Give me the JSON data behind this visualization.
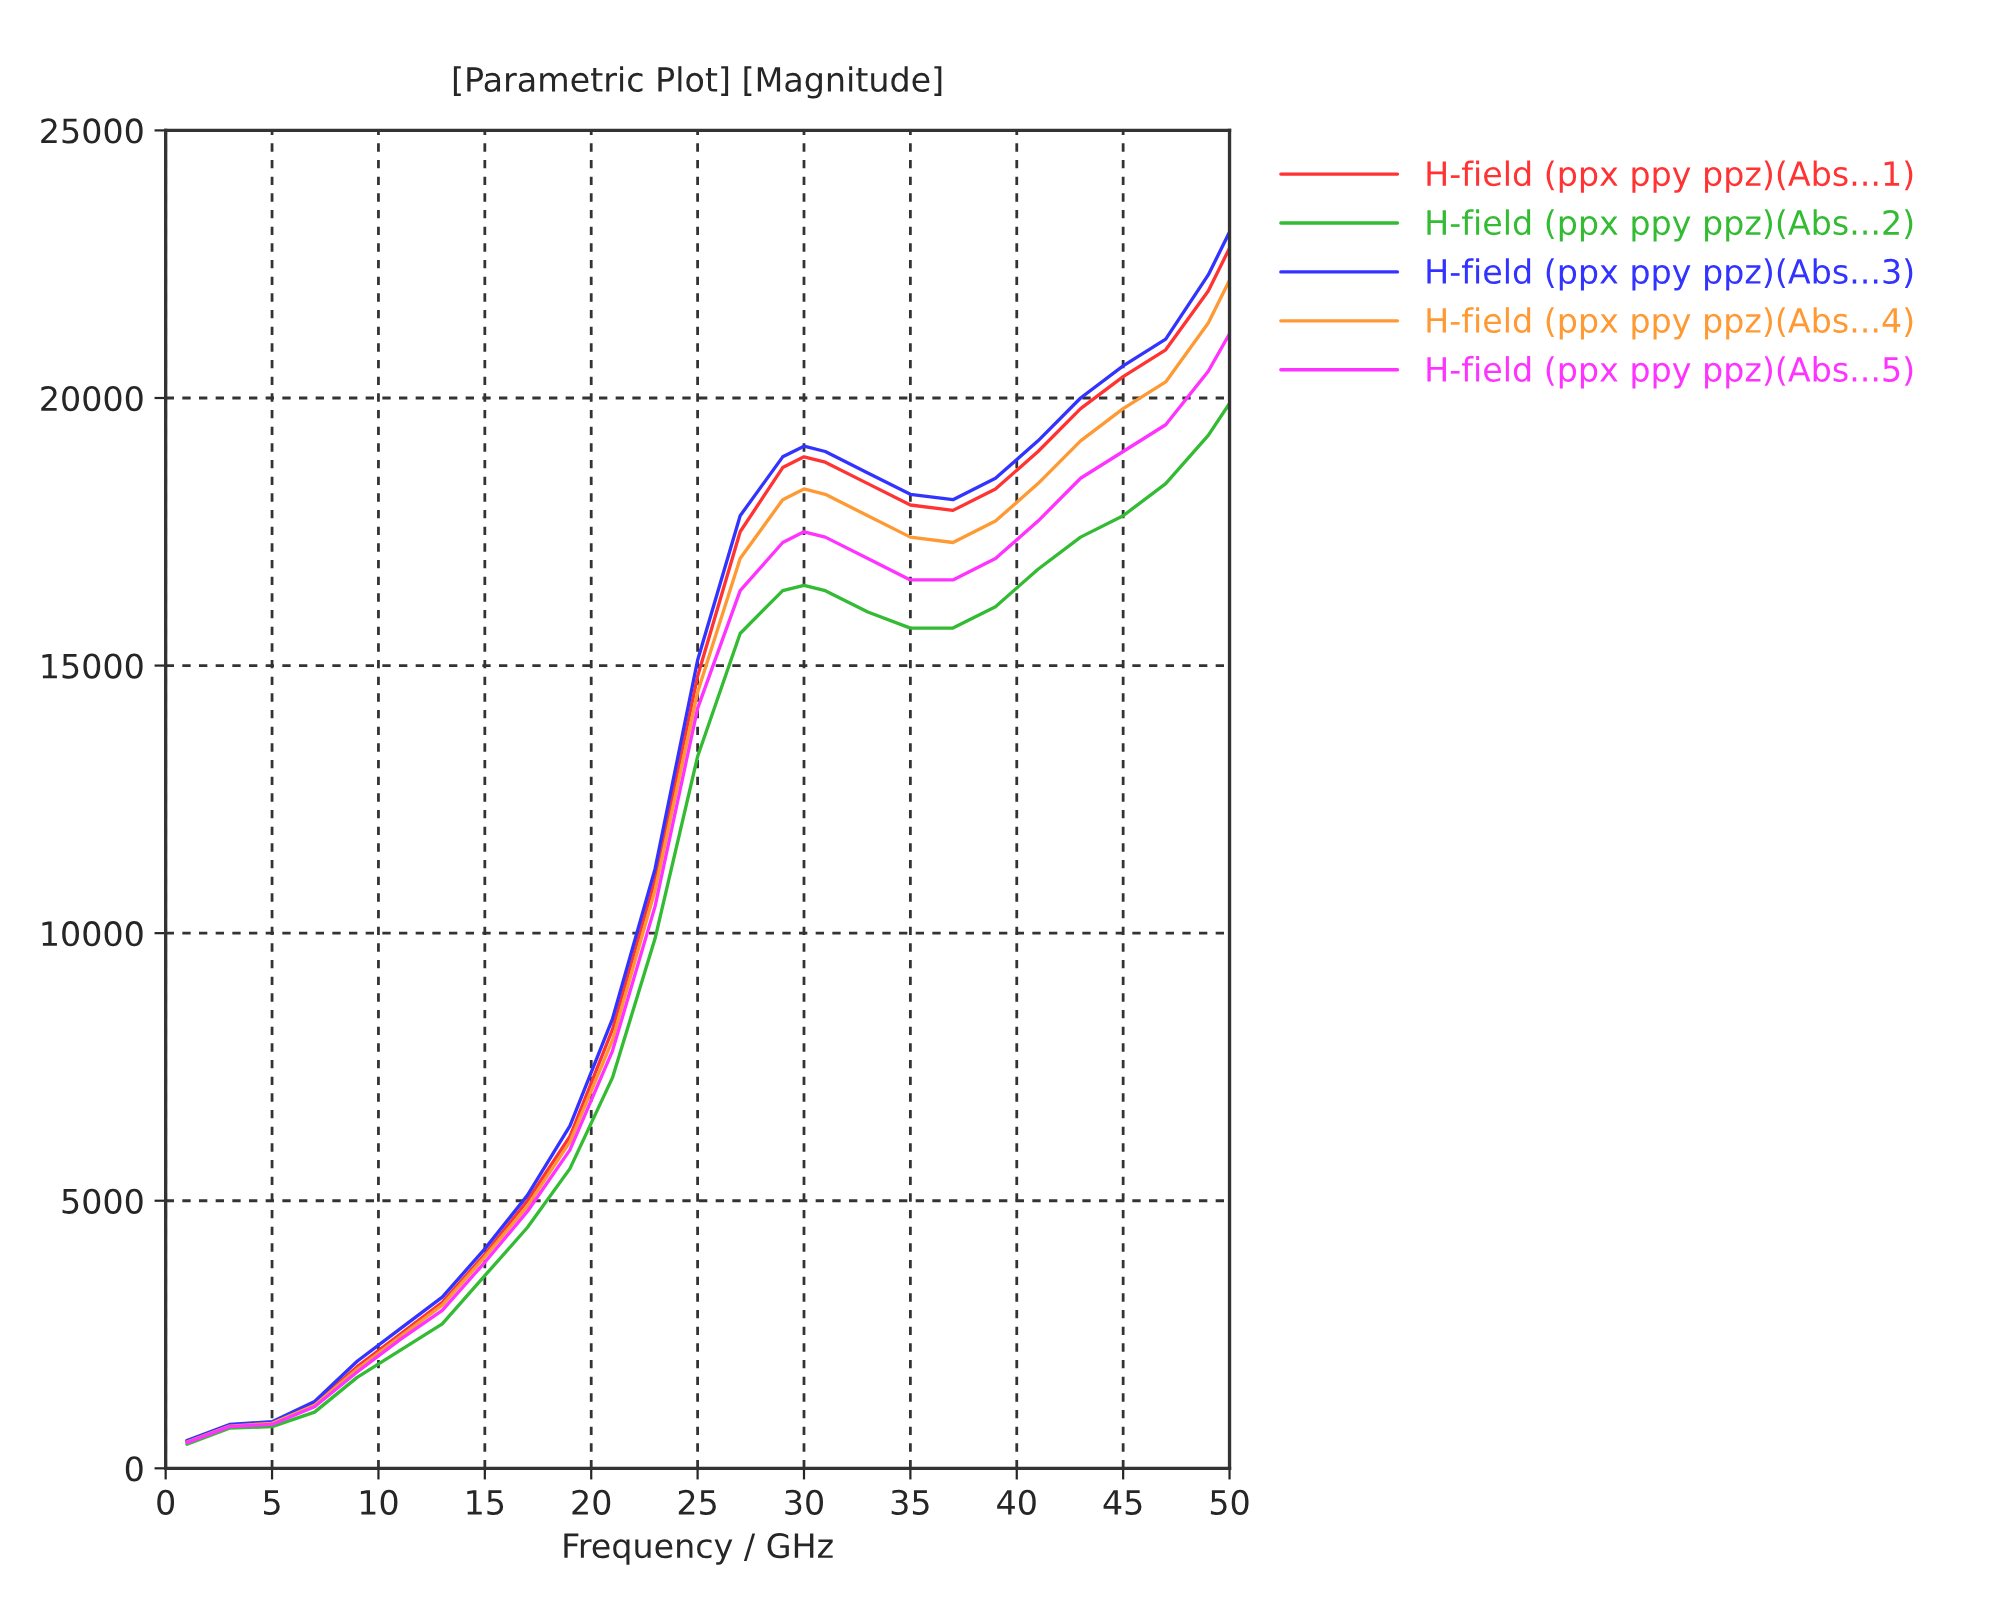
{
  "chart_data": {
    "type": "line",
    "title": "[Parametric Plot] [Magnitude]",
    "xlabel": "Frequency / GHz",
    "x": [
      1,
      3,
      5,
      7,
      9,
      11,
      13,
      15,
      17,
      19,
      21,
      23,
      25,
      27,
      29,
      30,
      31,
      33,
      35,
      37,
      39,
      41,
      43,
      45,
      47,
      49,
      50
    ],
    "series": [
      {
        "name": "H-field (ppx ppy ppz)(Abs...1)",
        "color": "#ff3333",
        "values": [
          500,
          800,
          850,
          1200,
          1900,
          2500,
          3100,
          4000,
          5000,
          6200,
          8200,
          11000,
          14800,
          17500,
          18700,
          18900,
          18800,
          18400,
          18000,
          17900,
          18300,
          19000,
          19800,
          20400,
          20900,
          22000,
          22800
        ]
      },
      {
        "name": "H-field (ppx ppy ppz)(Abs...2)",
        "color": "#33bb33",
        "values": [
          450,
          750,
          780,
          1050,
          1700,
          2200,
          2700,
          3600,
          4500,
          5600,
          7300,
          9900,
          13300,
          15600,
          16400,
          16500,
          16400,
          16000,
          15700,
          15700,
          16100,
          16800,
          17400,
          17800,
          18400,
          19300,
          19900
        ]
      },
      {
        "name": "H-field (ppx ppy ppz)(Abs...3)",
        "color": "#3333ff",
        "values": [
          520,
          820,
          870,
          1250,
          2000,
          2600,
          3200,
          4100,
          5100,
          6400,
          8400,
          11200,
          15100,
          17800,
          18900,
          19100,
          19000,
          18600,
          18200,
          18100,
          18500,
          19200,
          20000,
          20600,
          21100,
          22300,
          23100
        ]
      },
      {
        "name": "H-field (ppx ppy ppz)(Abs...4)",
        "color": "#ff9933",
        "values": [
          490,
          790,
          840,
          1180,
          1850,
          2450,
          3050,
          3950,
          4900,
          6100,
          8000,
          10800,
          14500,
          17000,
          18100,
          18300,
          18200,
          17800,
          17400,
          17300,
          17700,
          18400,
          19200,
          19800,
          20300,
          21400,
          22200
        ]
      },
      {
        "name": "H-field (ppx ppy ppz)(Abs...5)",
        "color": "#ff33ff",
        "values": [
          480,
          780,
          820,
          1150,
          1800,
          2400,
          2950,
          3850,
          4800,
          5950,
          7800,
          10500,
          14200,
          16400,
          17300,
          17500,
          17400,
          17000,
          16600,
          16600,
          17000,
          17700,
          18500,
          19000,
          19500,
          20500,
          21200
        ]
      }
    ],
    "xlim": [
      0,
      50
    ],
    "xticks": [
      0,
      5,
      10,
      15,
      20,
      25,
      30,
      35,
      40,
      45,
      50
    ],
    "ylim": [
      0,
      25000
    ],
    "yticks": [
      0,
      5000,
      10000,
      15000,
      20000,
      25000
    ],
    "grid": true,
    "legend": "top right",
    "line_style": "solid",
    "marker": "none"
  }
}
